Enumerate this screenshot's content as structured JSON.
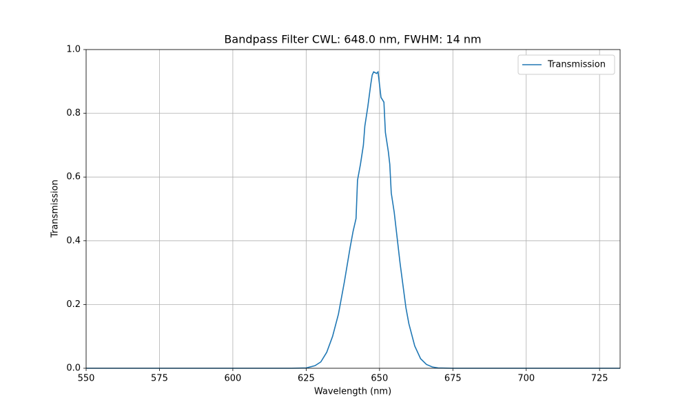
{
  "chart_data": {
    "type": "line",
    "title": "Bandpass Filter CWL: 648.0 nm, FWHM: 14 nm",
    "x_label": "Wavelength (nm)",
    "y_label": "Transmission",
    "x": [
      550,
      600,
      620,
      625,
      628,
      630,
      632,
      634,
      636,
      638,
      640,
      641,
      642,
      642.5,
      643.5,
      644.5,
      645,
      646,
      647,
      647.5,
      648,
      649,
      649.5,
      650.5,
      651.5,
      652,
      653,
      653.5,
      654,
      655,
      656,
      657,
      658,
      659,
      660,
      662,
      664,
      666,
      668,
      670,
      675,
      700,
      732
    ],
    "series": [
      {
        "name": "Transmission",
        "color": "#1f77b4",
        "values": [
          0,
          0,
          0,
          0.001,
          0.008,
          0.02,
          0.05,
          0.1,
          0.17,
          0.27,
          0.38,
          0.43,
          0.47,
          0.59,
          0.64,
          0.7,
          0.76,
          0.82,
          0.89,
          0.92,
          0.93,
          0.925,
          0.93,
          0.85,
          0.835,
          0.74,
          0.68,
          0.64,
          0.55,
          0.49,
          0.41,
          0.33,
          0.26,
          0.19,
          0.14,
          0.07,
          0.03,
          0.012,
          0.004,
          0.001,
          0,
          0,
          0
        ]
      }
    ],
    "xlim": [
      550,
      732
    ],
    "ylim": [
      0,
      1
    ],
    "xticks": [
      550,
      575,
      600,
      625,
      650,
      675,
      700,
      725
    ],
    "yticks": [
      {
        "value": 0,
        "label": "0.0"
      },
      0.2,
      0.4,
      0.6,
      0.8,
      {
        "value": 1,
        "label": "1.0"
      }
    ],
    "grid": true,
    "legend": "upper right"
  }
}
